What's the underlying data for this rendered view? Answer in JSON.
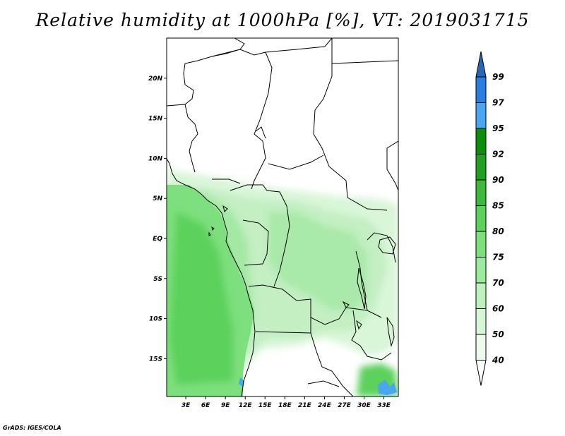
{
  "title": "Relative humidity at 1000hPa [%], VT: 2019031715",
  "credit": "GrADS: IGES/COLA",
  "map": {
    "lat_ticks": [
      {
        "value": 20,
        "label": "20N"
      },
      {
        "value": 15,
        "label": "15N"
      },
      {
        "value": 10,
        "label": "10N"
      },
      {
        "value": 5,
        "label": "5N"
      },
      {
        "value": 0,
        "label": "EQ"
      },
      {
        "value": -5,
        "label": "5S"
      },
      {
        "value": -10,
        "label": "10S"
      },
      {
        "value": -15,
        "label": "15S"
      }
    ],
    "lon_ticks": [
      {
        "value": 3,
        "label": "3E"
      },
      {
        "value": 6,
        "label": "6E"
      },
      {
        "value": 9,
        "label": "9E"
      },
      {
        "value": 12,
        "label": "12E"
      },
      {
        "value": 15,
        "label": "15E"
      },
      {
        "value": 18,
        "label": "18E"
      },
      {
        "value": 21,
        "label": "21E"
      },
      {
        "value": 24,
        "label": "24E"
      },
      {
        "value": 27,
        "label": "27E"
      },
      {
        "value": 30,
        "label": "30E"
      },
      {
        "value": 33,
        "label": "33E"
      }
    ]
  },
  "colorbar": {
    "levels": [
      {
        "label": "99",
        "color": "#2966b8"
      },
      {
        "label": "97",
        "color": "#2a7ee0"
      },
      {
        "label": "95",
        "color": "#4aa6f0"
      },
      {
        "label": "92",
        "color": "#0b8f0b"
      },
      {
        "label": "90",
        "color": "#20a020"
      },
      {
        "label": "85",
        "color": "#3dba3d"
      },
      {
        "label": "80",
        "color": "#5cd15c"
      },
      {
        "label": "75",
        "color": "#7ddf7d"
      },
      {
        "label": "70",
        "color": "#9de99d"
      },
      {
        "label": "60",
        "color": "#bdf2bd"
      },
      {
        "label": "50",
        "color": "#d6f7d6"
      },
      {
        "label": "40",
        "color": "#ecfbec"
      }
    ],
    "top_color": "#2966b8",
    "bottom_color": "#ffffff"
  }
}
